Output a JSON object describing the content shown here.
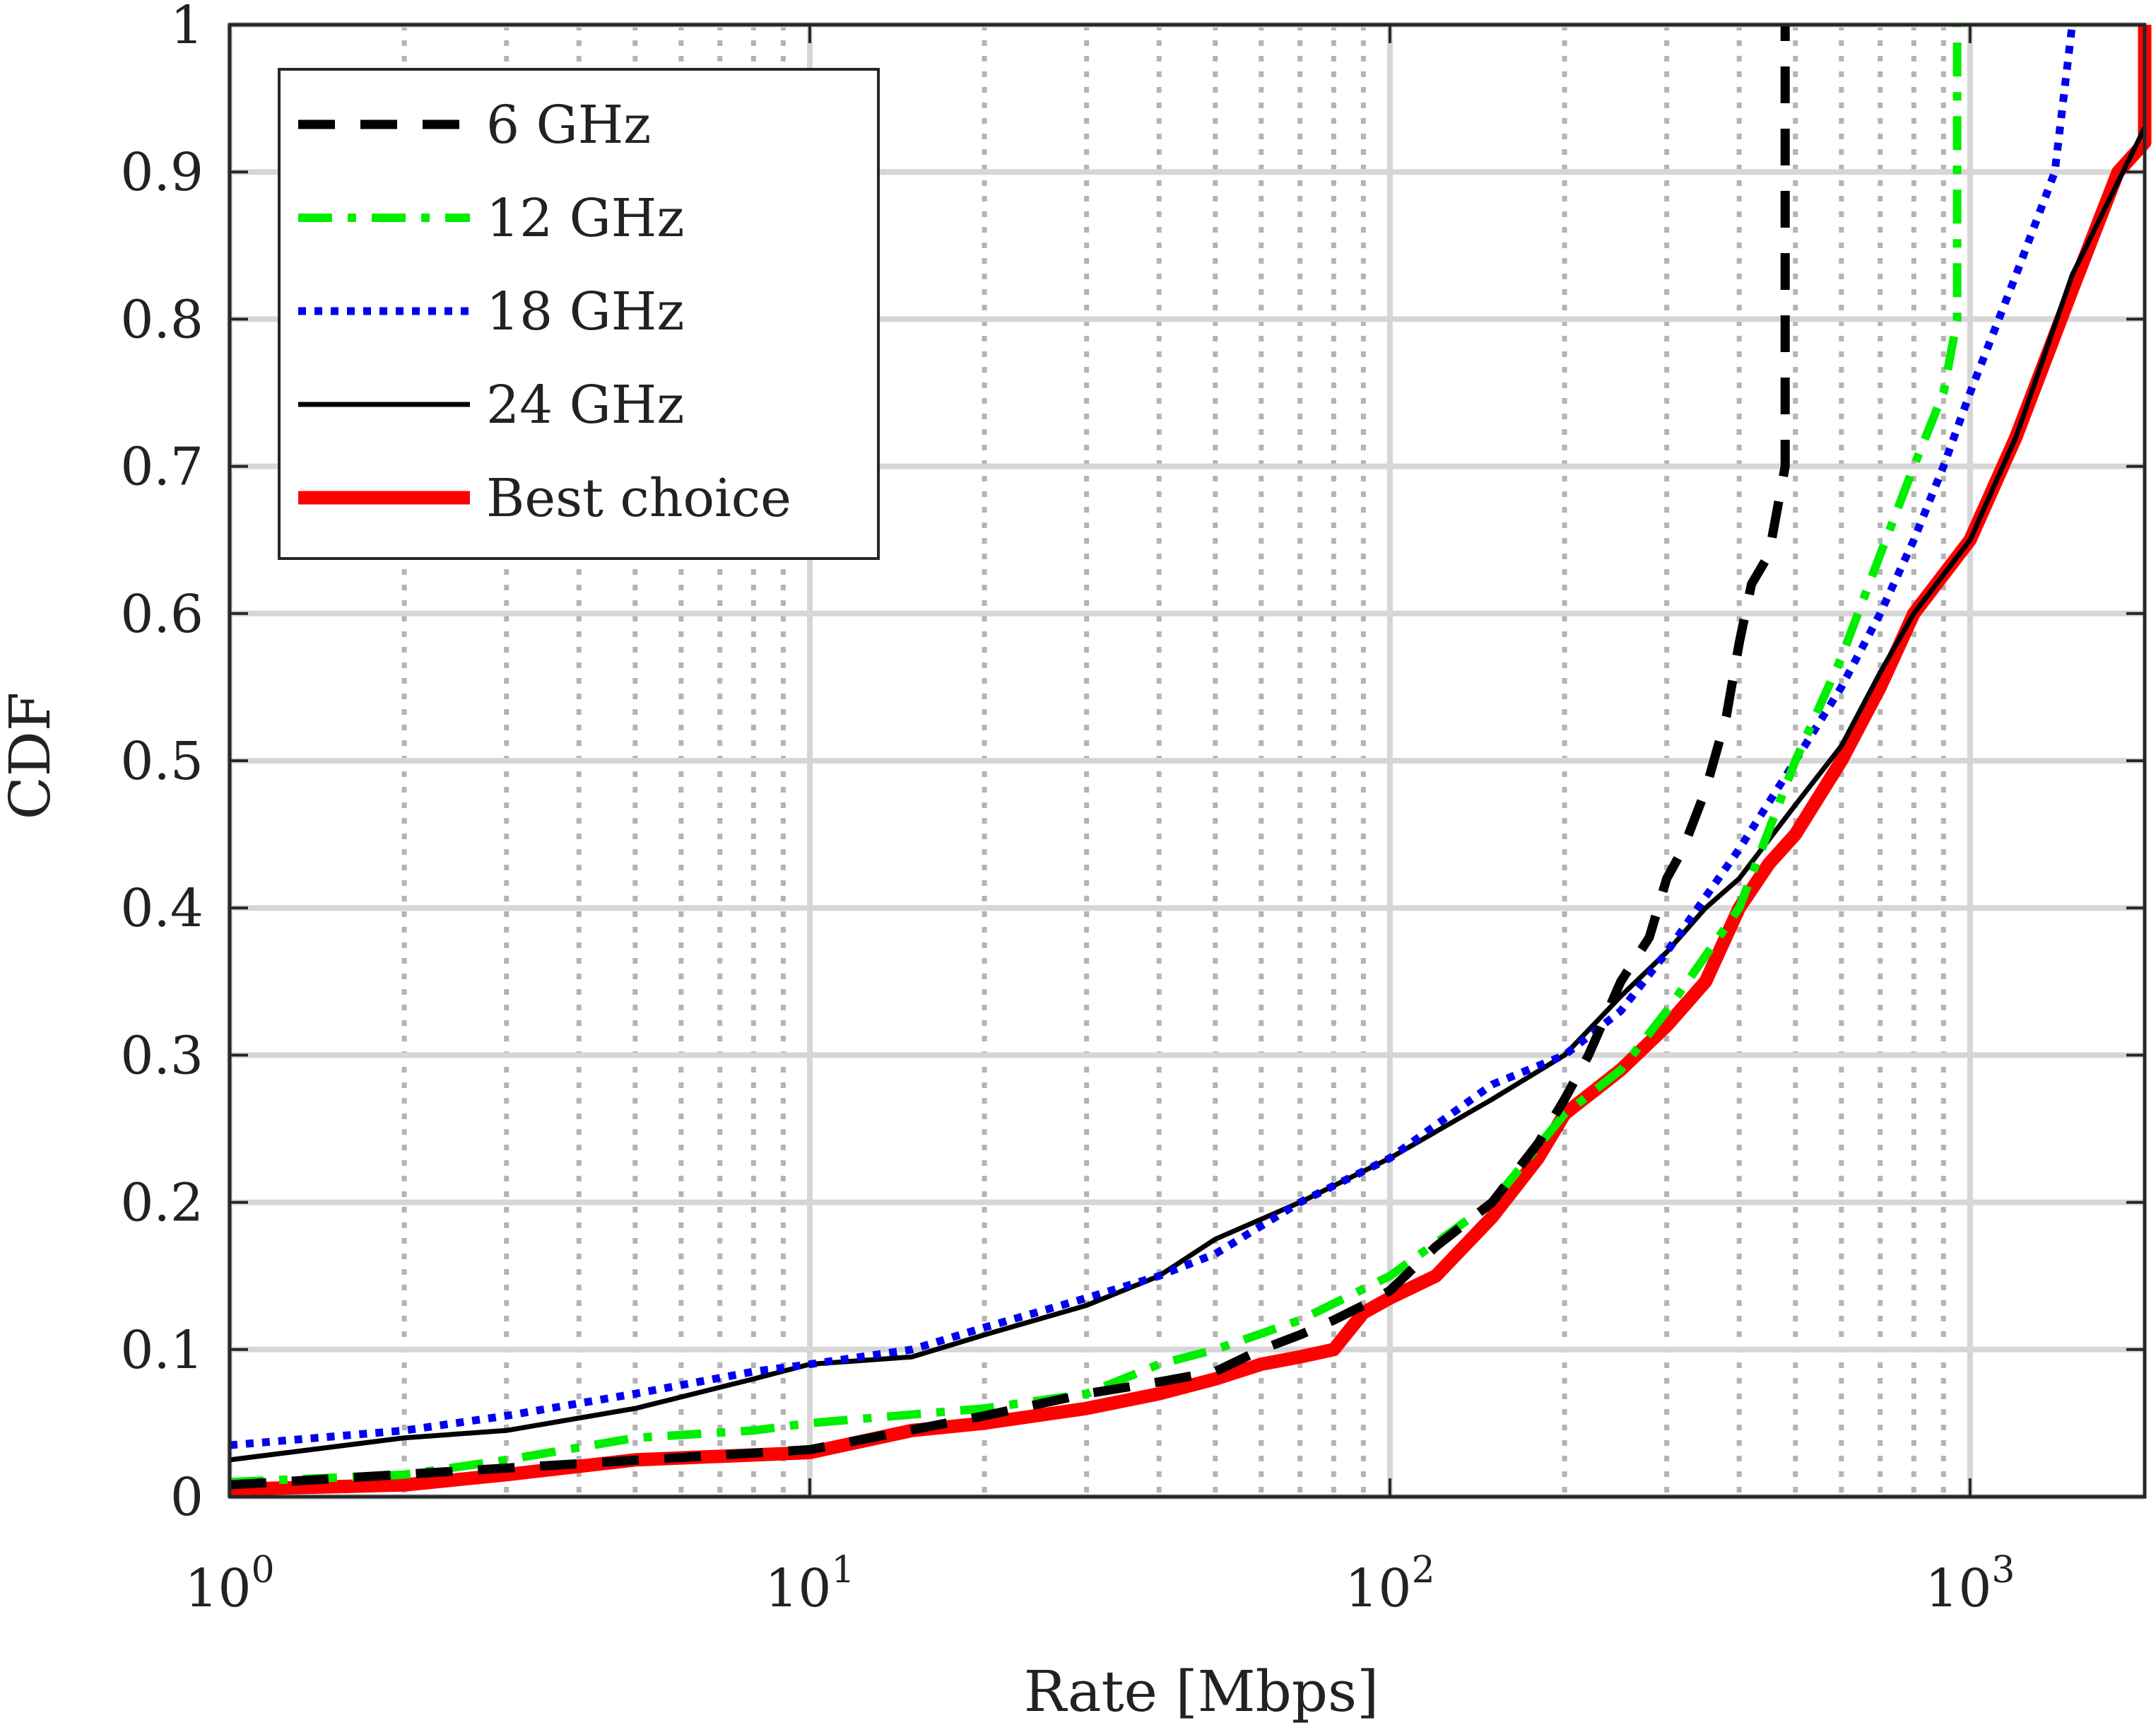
{
  "chart_data": {
    "type": "line",
    "title": "",
    "xlabel": "Rate [Mbps]",
    "ylabel": "CDF",
    "xscale": "log",
    "xlim": [
      1,
      2000
    ],
    "ylim": [
      0,
      1
    ],
    "grid": true,
    "legend_position": "top-left",
    "x_ticks": [
      {
        "value": 1,
        "base": "10",
        "exp": "0"
      },
      {
        "value": 10,
        "base": "10",
        "exp": "1"
      },
      {
        "value": 100,
        "base": "10",
        "exp": "2"
      },
      {
        "value": 1000,
        "base": "10",
        "exp": "3"
      }
    ],
    "y_ticks": [
      {
        "value": 0,
        "label": "0"
      },
      {
        "value": 0.1,
        "label": "0.1"
      },
      {
        "value": 0.2,
        "label": "0.2"
      },
      {
        "value": 0.3,
        "label": "0.3"
      },
      {
        "value": 0.4,
        "label": "0.4"
      },
      {
        "value": 0.5,
        "label": "0.5"
      },
      {
        "value": 0.6,
        "label": "0.6"
      },
      {
        "value": 0.7,
        "label": "0.7"
      },
      {
        "value": 0.8,
        "label": "0.8"
      },
      {
        "value": 0.9,
        "label": "0.9"
      },
      {
        "value": 1,
        "label": "1"
      }
    ],
    "series": [
      {
        "name": "6 GHz",
        "color": "#000000",
        "style": "dashed",
        "x": [
          1,
          10,
          20,
          30,
          40,
          50,
          60,
          70,
          80,
          90,
          100,
          120,
          150,
          180,
          200,
          220,
          250,
          280,
          300,
          320,
          350,
          380,
          400,
          420,
          450,
          480,
          480
        ],
        "y": [
          0.008,
          0.032,
          0.055,
          0.07,
          0.078,
          0.085,
          0.1,
          0.11,
          0.12,
          0.13,
          0.14,
          0.17,
          0.2,
          0.24,
          0.27,
          0.3,
          0.35,
          0.38,
          0.42,
          0.44,
          0.48,
          0.53,
          0.58,
          0.62,
          0.64,
          0.7,
          1.0
        ]
      },
      {
        "name": "12 GHz",
        "color": "#00ee00",
        "style": "dashdot",
        "x": [
          1,
          2,
          3,
          5,
          8,
          10,
          20,
          30,
          40,
          50,
          70,
          100,
          150,
          200,
          250,
          300,
          400,
          500,
          600,
          700,
          800,
          900,
          950,
          950
        ],
        "y": [
          0.01,
          0.015,
          0.025,
          0.04,
          0.045,
          0.05,
          0.06,
          0.07,
          0.09,
          0.1,
          0.12,
          0.15,
          0.2,
          0.26,
          0.29,
          0.33,
          0.4,
          0.5,
          0.57,
          0.64,
          0.7,
          0.75,
          0.8,
          1.0
        ]
      },
      {
        "name": "18 GHz",
        "color": "#0000ee",
        "style": "dotted",
        "x": [
          1,
          2,
          3,
          5,
          8,
          10,
          15,
          20,
          30,
          40,
          50,
          70,
          100,
          150,
          200,
          250,
          300,
          400,
          500,
          600,
          700,
          800,
          900,
          1000,
          1200,
          1400,
          1500,
          1500
        ],
        "y": [
          0.035,
          0.045,
          0.055,
          0.07,
          0.085,
          0.09,
          0.1,
          0.115,
          0.135,
          0.15,
          0.165,
          0.2,
          0.23,
          0.28,
          0.3,
          0.33,
          0.37,
          0.44,
          0.5,
          0.55,
          0.6,
          0.65,
          0.7,
          0.75,
          0.83,
          0.9,
          1.0,
          1.0
        ]
      },
      {
        "name": "24 GHz",
        "color": "#000000",
        "style": "solid",
        "x": [
          1,
          2,
          3,
          5,
          8,
          10,
          15,
          20,
          30,
          40,
          50,
          70,
          100,
          150,
          200,
          250,
          300,
          350,
          400,
          500,
          600,
          700,
          800,
          1000,
          1200,
          1500,
          2000
        ],
        "y": [
          0.025,
          0.04,
          0.045,
          0.06,
          0.08,
          0.09,
          0.095,
          0.11,
          0.13,
          0.15,
          0.175,
          0.2,
          0.23,
          0.27,
          0.3,
          0.34,
          0.37,
          0.4,
          0.42,
          0.47,
          0.51,
          0.56,
          0.6,
          0.65,
          0.72,
          0.83,
          0.93
        ]
      },
      {
        "name": "Best choice",
        "color": "#ff0000",
        "style": "thick-solid",
        "x": [
          1,
          2,
          3,
          5,
          10,
          15,
          20,
          30,
          40,
          50,
          60,
          70,
          80,
          90,
          100,
          120,
          150,
          180,
          200,
          250,
          300,
          350,
          400,
          450,
          500,
          600,
          700,
          800,
          1000,
          1200,
          1500,
          1800,
          2000,
          2000
        ],
        "y": [
          0.005,
          0.008,
          0.015,
          0.025,
          0.03,
          0.045,
          0.05,
          0.06,
          0.07,
          0.08,
          0.09,
          0.095,
          0.1,
          0.125,
          0.135,
          0.15,
          0.19,
          0.23,
          0.26,
          0.29,
          0.32,
          0.35,
          0.4,
          0.43,
          0.45,
          0.5,
          0.55,
          0.6,
          0.65,
          0.72,
          0.82,
          0.9,
          0.92,
          1.0
        ]
      }
    ]
  }
}
